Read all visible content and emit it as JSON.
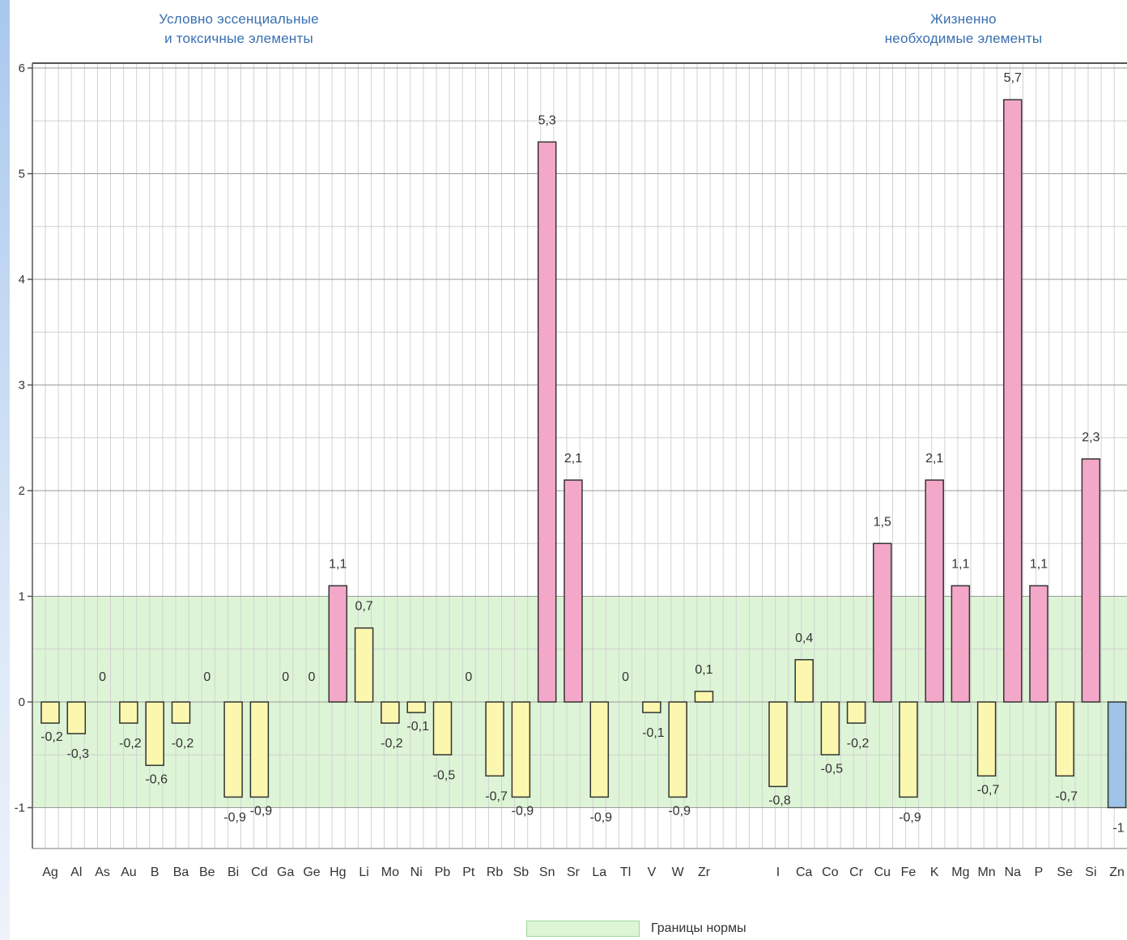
{
  "groups": {
    "left_line1": "Условно эссенциальные",
    "left_line2": "и токсичные элементы",
    "right_line1": "Жизненно",
    "right_line2": "необходимые элементы"
  },
  "legend": {
    "norm_label": "Границы нормы"
  },
  "colors": {
    "above_norm": "#f4a8c9",
    "in_norm": "#fbf7ae",
    "below_norm": "#9fc3e6",
    "norm_band": "#ddf5d6",
    "group_title": "#3a6fb0"
  },
  "chart_data": {
    "type": "bar",
    "ylim": [
      -1.4,
      6.2
    ],
    "yticks": [
      -1,
      0,
      1,
      2,
      3,
      4,
      5,
      6
    ],
    "norm_range": [
      -1,
      1
    ],
    "grid": true,
    "legend_position": "bottom",
    "categories": [
      "Ag",
      "Al",
      "As",
      "Au",
      "B",
      "Ba",
      "Be",
      "Bi",
      "Cd",
      "Ga",
      "Ge",
      "Hg",
      "Li",
      "Mo",
      "Ni",
      "Pb",
      "Pt",
      "Rb",
      "Sb",
      "Sn",
      "Sr",
      "La",
      "Tl",
      "V",
      "W",
      "Zr",
      "I",
      "Ca",
      "Co",
      "Cr",
      "Cu",
      "Fe",
      "K",
      "Mg",
      "Mn",
      "Na",
      "P",
      "Se",
      "Si",
      "Zn"
    ],
    "values": [
      -0.2,
      -0.3,
      0,
      -0.2,
      -0.6,
      -0.2,
      0,
      -0.9,
      -0.9,
      0,
      0,
      1.1,
      0.7,
      -0.2,
      -0.1,
      -0.5,
      0,
      -0.7,
      -0.9,
      5.3,
      2.1,
      -0.9,
      0,
      -0.1,
      -0.9,
      0.1,
      -0.8,
      0.4,
      -0.5,
      -0.2,
      1.5,
      -0.9,
      2.1,
      1.1,
      -0.7,
      5.7,
      1.1,
      -0.7,
      2.3,
      -1
    ],
    "value_labels": [
      "-0,2",
      "-0,3",
      "0",
      "-0,2",
      "-0,6",
      "-0,2",
      "0",
      "-0,9",
      "-0,9",
      "0",
      "0",
      "1,1",
      "0,7",
      "-0,2",
      "-0,1",
      "-0,5",
      "0",
      "-0,7",
      "-0,9",
      "5,3",
      "2,1",
      "-0,9",
      "0",
      "-0,1",
      "-0,9",
      "0,1",
      "-0,8",
      "0,4",
      "-0,5",
      "-0,2",
      "1,5",
      "-0,9",
      "2,1",
      "1,1",
      "-0,7",
      "5,7",
      "1,1",
      "-0,7",
      "2,3",
      "-1"
    ]
  }
}
